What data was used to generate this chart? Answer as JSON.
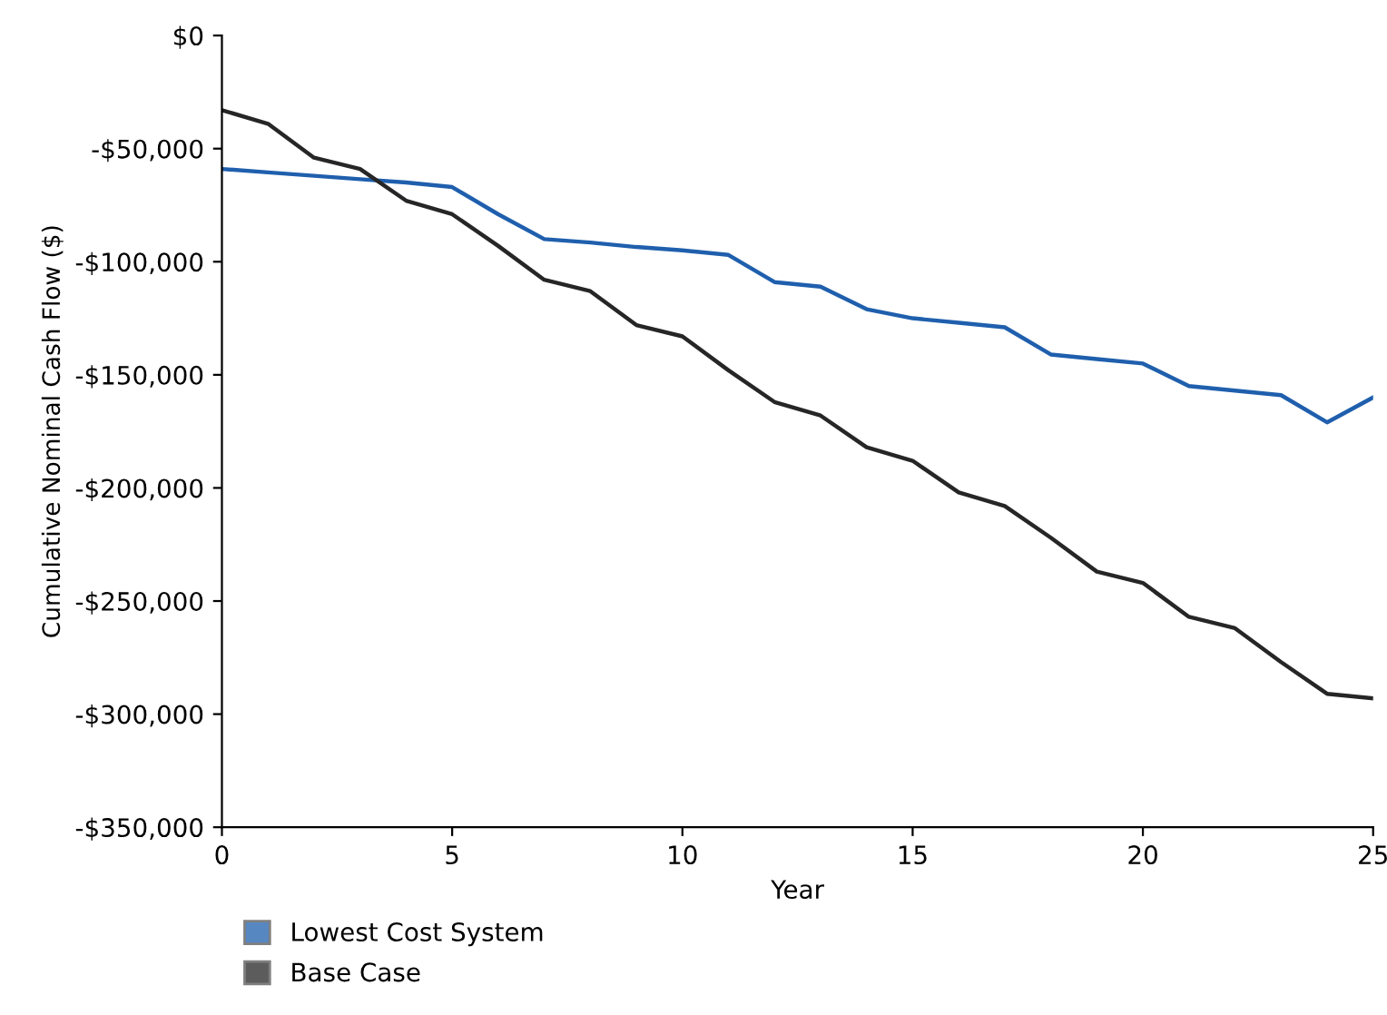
{
  "chart_data": {
    "type": "line",
    "xlabel": "Year",
    "ylabel": "Cumulative Nominal Cash Flow ($)",
    "x": [
      0,
      1,
      2,
      3,
      4,
      5,
      6,
      7,
      8,
      9,
      10,
      11,
      12,
      13,
      14,
      15,
      16,
      17,
      18,
      19,
      20,
      21,
      22,
      23,
      24,
      25
    ],
    "series": [
      {
        "name": "Lowest Cost System",
        "color": "#1f5fad",
        "values": [
          -59000,
          -60500,
          -62000,
          -63500,
          -65000,
          -67000,
          -79000,
          -90000,
          -91500,
          -93500,
          -95000,
          -97000,
          -109000,
          -111000,
          -121000,
          -125000,
          -127000,
          -129000,
          -141000,
          -143000,
          -145000,
          -155000,
          -157000,
          -159000,
          -171000,
          -160000
        ]
      },
      {
        "name": "Base Case",
        "color": "#262626",
        "values": [
          -33000,
          -39000,
          -54000,
          -59000,
          -73000,
          -79000,
          -93000,
          -108000,
          -113000,
          -128000,
          -133000,
          -148000,
          -162000,
          -168000,
          -182000,
          -188000,
          -202000,
          -208000,
          -222000,
          -237000,
          -242000,
          -257000,
          -262000,
          -277000,
          -291000,
          -293000
        ]
      }
    ],
    "xlim": [
      0,
      25
    ],
    "xticks": [
      0,
      5,
      10,
      15,
      20,
      25
    ],
    "ylim": [
      -350000,
      0
    ],
    "yticks": [
      {
        "value": 0,
        "label": "$0"
      },
      {
        "value": -50000,
        "label": "-$50,000"
      },
      {
        "value": -100000,
        "label": "-$100,000"
      },
      {
        "value": -150000,
        "label": "-$150,000"
      },
      {
        "value": -200000,
        "label": "-$200,000"
      },
      {
        "value": -250000,
        "label": "-$250,000"
      },
      {
        "value": -300000,
        "label": "-$300,000"
      },
      {
        "value": -350000,
        "label": "-$350,000"
      }
    ],
    "grid": false,
    "legend": "bottom left",
    "marker": "none",
    "line_style": "solid"
  }
}
